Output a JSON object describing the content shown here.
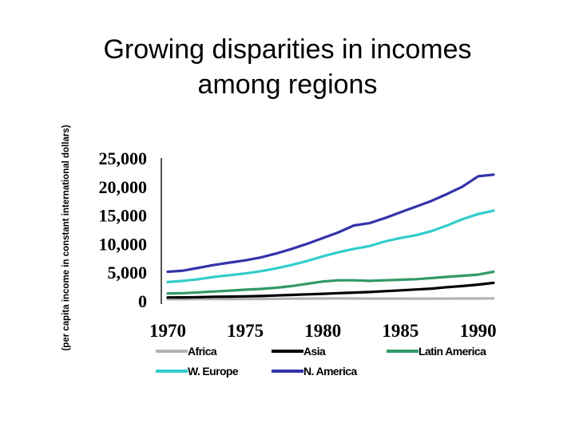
{
  "slide": {
    "title_line1": "Growing disparities in incomes",
    "title_line2": "among regions"
  },
  "chart_data": {
    "type": "line",
    "title": "",
    "xlabel": "",
    "ylabel": "(per capita income in constant international dollars)",
    "xlim": [
      1970,
      1991
    ],
    "ylim": [
      0,
      25000
    ],
    "x_ticks": [
      "1970",
      "1975",
      "1980",
      "1985",
      "1990"
    ],
    "y_ticks": [
      "25,000",
      "20,000",
      "15,000",
      "10,000",
      "5,000",
      "0"
    ],
    "y_tick_values": [
      25000,
      20000,
      15000,
      10000,
      5000,
      0
    ],
    "x_tick_values": [
      1970,
      1975,
      1980,
      1985,
      1990
    ],
    "grid": false,
    "legend_position": "bottom",
    "x": [
      1970,
      1971,
      1972,
      1973,
      1974,
      1975,
      1976,
      1977,
      1978,
      1979,
      1980,
      1981,
      1982,
      1983,
      1984,
      1985,
      1986,
      1987,
      1988,
      1989,
      1990,
      1991
    ],
    "series": [
      {
        "name": "Africa",
        "color": "#b3b3b3",
        "values": [
          300,
          300,
          320,
          330,
          340,
          340,
          350,
          380,
          390,
          400,
          420,
          430,
          420,
          410,
          400,
          400,
          390,
          400,
          410,
          420,
          420,
          450
        ]
      },
      {
        "name": "Asia",
        "color": "#000000",
        "values": [
          600,
          620,
          660,
          720,
          760,
          800,
          850,
          950,
          1050,
          1150,
          1250,
          1350,
          1450,
          1550,
          1700,
          1850,
          2000,
          2150,
          2400,
          2600,
          2850,
          3150
        ]
      },
      {
        "name": "Latin America",
        "color": "#339966",
        "values": [
          1300,
          1350,
          1500,
          1650,
          1800,
          1950,
          2100,
          2300,
          2600,
          3000,
          3400,
          3600,
          3600,
          3500,
          3600,
          3700,
          3800,
          4000,
          4200,
          4400,
          4600,
          5100
        ]
      },
      {
        "name": "W. Europe",
        "color": "#33cccc",
        "values": [
          3300,
          3500,
          3800,
          4200,
          4500,
          4800,
          5200,
          5700,
          6300,
          7000,
          7800,
          8500,
          9100,
          9600,
          10400,
          11000,
          11500,
          12200,
          13200,
          14300,
          15200,
          15800
        ]
      },
      {
        "name": "N. America",
        "color": "#3333aa",
        "values": [
          5100,
          5300,
          5800,
          6300,
          6700,
          7100,
          7600,
          8300,
          9100,
          10000,
          11000,
          12000,
          13200,
          13600,
          14500,
          15500,
          16500,
          17500,
          18700,
          20000,
          21800,
          22100
        ]
      }
    ]
  }
}
